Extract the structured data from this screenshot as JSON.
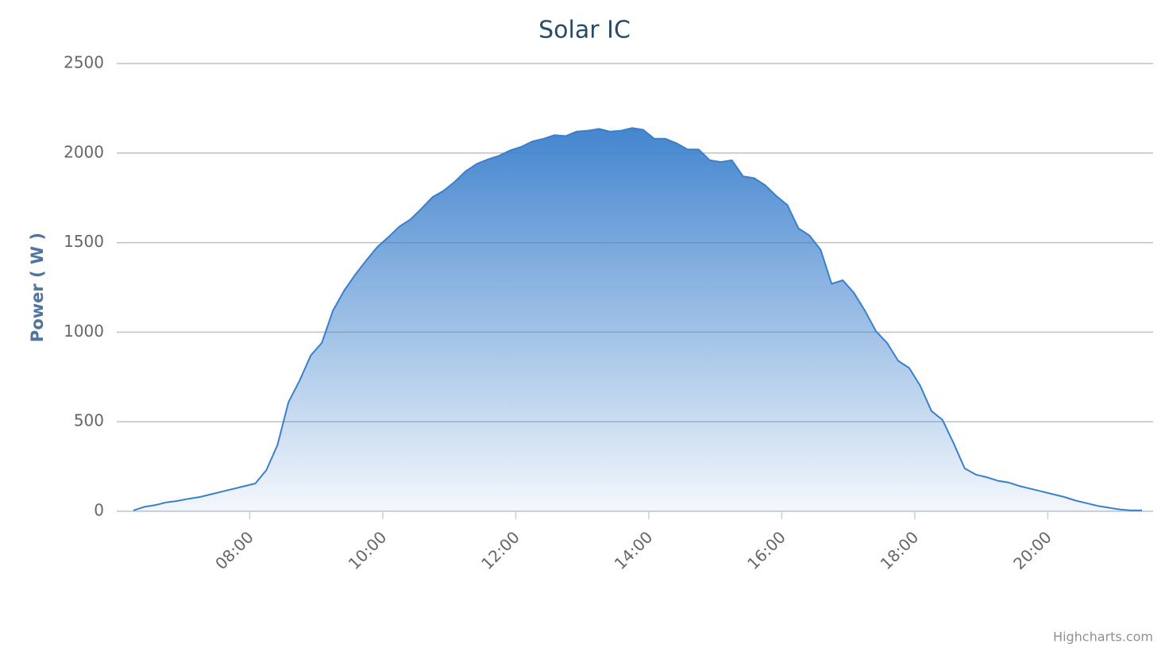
{
  "chart_data": {
    "type": "area",
    "title": "Solar IC",
    "y_label": "Power ( W )",
    "credits": "Highcharts.com",
    "color": "#3a7fcc",
    "grid": true,
    "x": [
      "06:15",
      "06:25",
      "06:35",
      "06:45",
      "06:55",
      "07:05",
      "07:15",
      "07:25",
      "07:35",
      "07:45",
      "07:55",
      "08:05",
      "08:15",
      "08:25",
      "08:35",
      "08:45",
      "08:55",
      "09:05",
      "09:15",
      "09:25",
      "09:35",
      "09:45",
      "09:55",
      "10:05",
      "10:15",
      "10:25",
      "10:35",
      "10:45",
      "10:55",
      "11:05",
      "11:15",
      "11:25",
      "11:35",
      "11:45",
      "11:55",
      "12:05",
      "12:15",
      "12:25",
      "12:35",
      "12:45",
      "12:55",
      "13:05",
      "13:15",
      "13:25",
      "13:35",
      "13:45",
      "13:55",
      "14:05",
      "14:15",
      "14:25",
      "14:35",
      "14:45",
      "14:55",
      "15:05",
      "15:15",
      "15:25",
      "15:35",
      "15:45",
      "15:55",
      "16:05",
      "16:15",
      "16:25",
      "16:35",
      "16:45",
      "16:55",
      "17:05",
      "17:15",
      "17:25",
      "17:35",
      "17:45",
      "17:55",
      "18:05",
      "18:15",
      "18:25",
      "18:35",
      "18:45",
      "18:55",
      "19:05",
      "19:15",
      "19:25",
      "19:35",
      "19:45",
      "19:55",
      "20:05",
      "20:15",
      "20:25",
      "20:35",
      "20:45",
      "20:55",
      "21:05",
      "21:15",
      "21:25"
    ],
    "values": [
      5,
      25,
      35,
      50,
      58,
      70,
      80,
      95,
      110,
      125,
      140,
      155,
      230,
      370,
      610,
      730,
      870,
      940,
      1120,
      1230,
      1320,
      1400,
      1475,
      1530,
      1590,
      1630,
      1690,
      1755,
      1790,
      1840,
      1900,
      1940,
      1965,
      1985,
      2015,
      2035,
      2065,
      2080,
      2100,
      2095,
      2120,
      2125,
      2135,
      2120,
      2125,
      2140,
      2130,
      2080,
      2080,
      2055,
      2020,
      2020,
      1960,
      1950,
      1960,
      1870,
      1860,
      1820,
      1760,
      1710,
      1580,
      1540,
      1460,
      1270,
      1290,
      1220,
      1120,
      1005,
      940,
      840,
      800,
      700,
      560,
      510,
      380,
      240,
      205,
      190,
      170,
      160,
      140,
      125,
      110,
      95,
      80,
      60,
      45,
      30,
      20,
      10,
      5,
      5
    ],
    "xlim": [
      "06:00",
      "21:35"
    ],
    "xticks": [
      "08:00",
      "10:00",
      "12:00",
      "14:00",
      "16:00",
      "18:00",
      "20:00"
    ],
    "ylim": [
      0,
      2500
    ],
    "yticks": [
      0,
      500,
      1000,
      1500,
      2000,
      2500
    ]
  }
}
